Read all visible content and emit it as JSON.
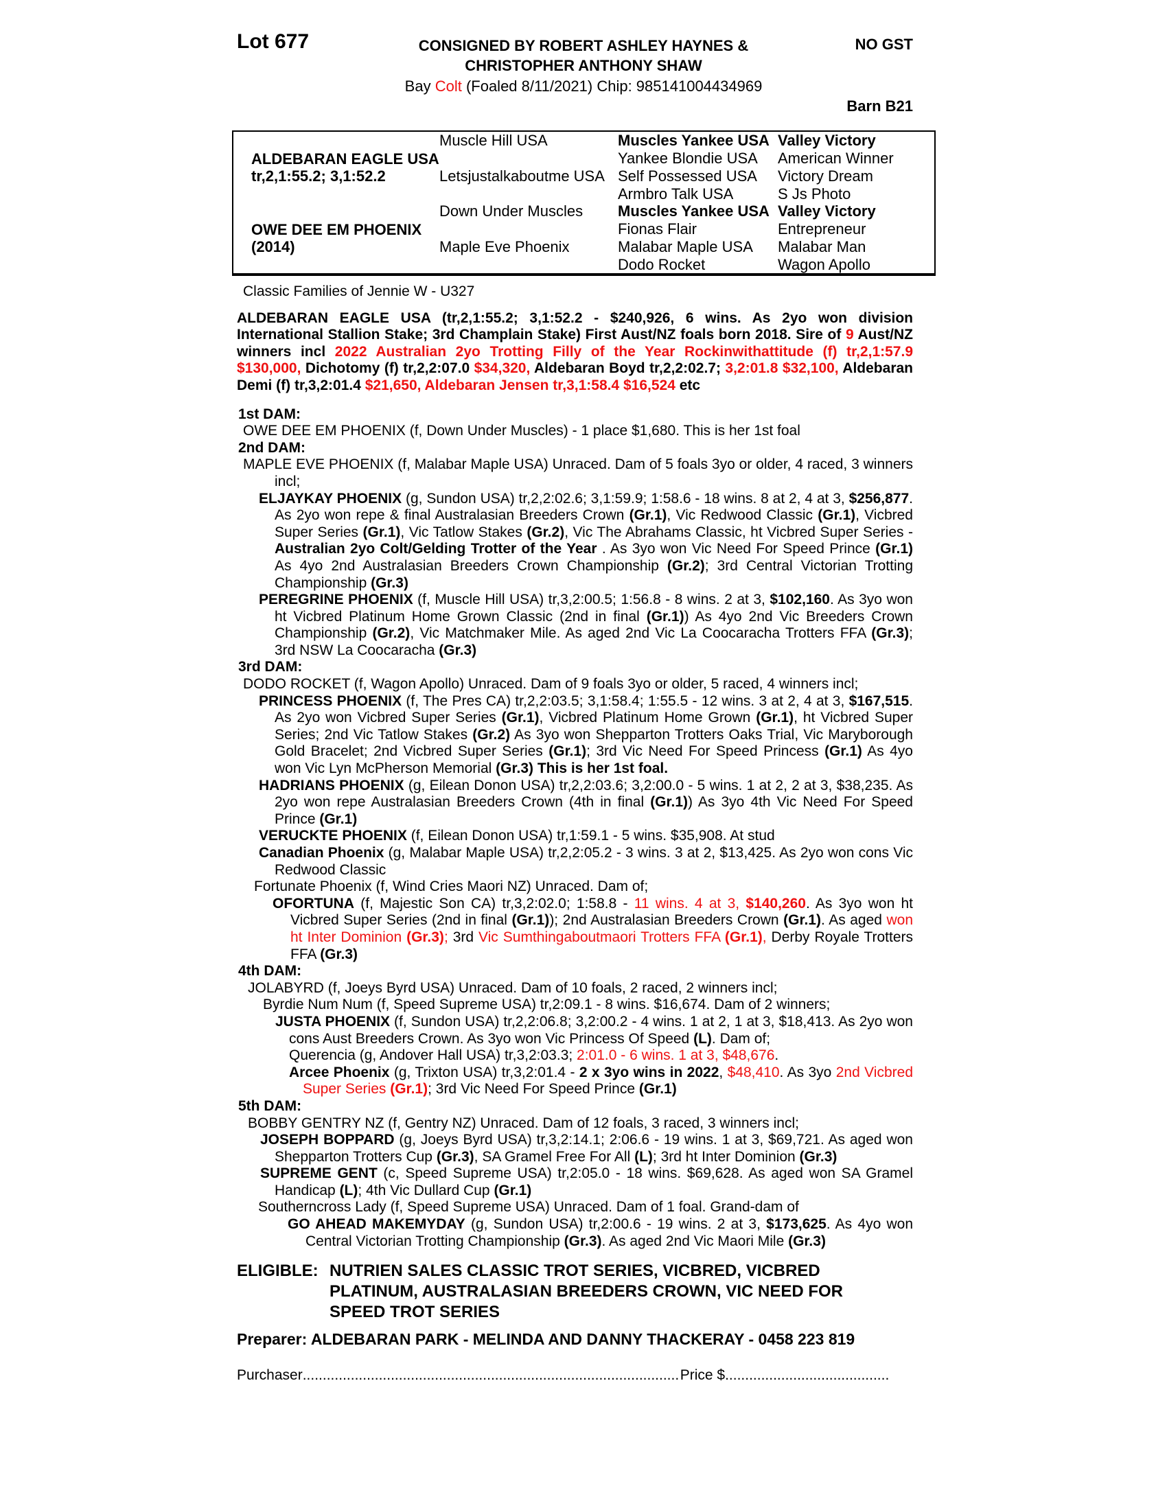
{
  "colors": {
    "accent_red": "#ee1111",
    "text": "#000000",
    "page_bg": "#ffffff"
  },
  "header": {
    "lot": "Lot 677",
    "consigned_line1": "CONSIGNED BY ROBERT ASHLEY HAYNES &",
    "consigned_line2": "CHRISTOPHER ANTHONY SHAW",
    "no_gst": "NO GST",
    "barn": "Barn B21",
    "foal_segments": [
      {
        "t": "Bay "
      },
      {
        "t": "Colt",
        "r": true
      },
      {
        "t": " (Foaled 8/11/2021) Chip: 985141004434969"
      }
    ]
  },
  "pedigree_table": {
    "main": [
      {
        "name": "ALDEBARAN EAGLE USA",
        "record": "tr,2,1:55.2; 3,1:52.2"
      },
      {
        "name": "OWE DEE EM PHOENIX",
        "record": "(2014)"
      }
    ],
    "gen2": [
      "Muscle Hill USA",
      "Letsjustalkaboutme USA",
      "Down Under Muscles",
      "Maple Eve Phoenix"
    ],
    "rows": [
      {
        "c3": "Muscles Yankee USA",
        "c4": "Valley Victory"
      },
      {
        "c3": "Yankee Blondie USA",
        "c4": "American Winner"
      },
      {
        "c3": "Self Possessed USA",
        "c4": "Victory Dream"
      },
      {
        "c3": "Armbro Talk USA",
        "c4": "S Js Photo"
      },
      {
        "c3": "Muscles Yankee USA",
        "c4": "Valley Victory"
      },
      {
        "c3": "Fionas Flair",
        "c4": "Entrepreneur"
      },
      {
        "c3": "Malabar Maple USA",
        "c4": "Malabar Man"
      },
      {
        "c3": "Dodo Rocket",
        "c4": "Wagon Apollo"
      }
    ]
  },
  "family_line": "Classic Families of Jennie W - U327",
  "paragraphs": {
    "sire": [
      {
        "t": "ALDEBARAN EAGLE USA (tr,2,1:55.2; 3,1:52.2 - $240,926, 6 wins. As 2yo won division International Stallion Stake; 3rd Champlain Stake) First Aust/NZ foals born 2018. Sire of ",
        "b": true
      },
      {
        "t": "9",
        "b": true,
        "r": true
      },
      {
        "t": " Aust/NZ winners incl ",
        "b": true
      },
      {
        "t": "2022 Australian 2yo Trotting Filly of the Year Rockinwithattitude (f) tr,2,1:57.9 $130,000,",
        "b": true,
        "r": true
      },
      {
        "t": " Dichotomy (f) tr,2,2:07.0 ",
        "b": true
      },
      {
        "t": "$34,320,",
        "b": true,
        "r": true
      },
      {
        "t": " Aldebaran Boyd tr,2,2:02.7; ",
        "b": true
      },
      {
        "t": "3,2:01.8 $32,100,",
        "b": true,
        "r": true
      },
      {
        "t": " Aldebaran Demi (f) tr,3,2:01.4 ",
        "b": true
      },
      {
        "t": "$21,650, Aldebaran Jensen tr,3,1:58.4 $16,524",
        "b": true,
        "r": true
      },
      {
        "t": " etc",
        "b": true
      }
    ],
    "dam1_heading": "1st DAM:",
    "dam1": [
      {
        "t": "OWE DEE EM PHOENIX (f, Down Under Muscles) - 1 place $1,680. This is her 1st foal"
      }
    ],
    "dam2_heading": "2nd DAM:",
    "dam2": [
      {
        "t": "MAPLE EVE PHOENIX (f, Malabar Maple USA) Unraced. Dam of 5 foals 3yo or older, 4 raced, 3 winners incl;"
      }
    ],
    "eljaykay": [
      {
        "t": "ELJAYKAY PHOENIX",
        "b": true
      },
      {
        "t": " (g, Sundon USA) tr,2,2:02.6; 3,1:59.9; 1:58.6 - 18 wins. 8 at 2, 4 at 3, "
      },
      {
        "t": "$256,877",
        "b": true
      },
      {
        "t": ". As 2yo won repe & final Australasian Breeders Crown "
      },
      {
        "t": "(Gr.1)",
        "b": true
      },
      {
        "t": ", Vic Redwood Classic "
      },
      {
        "t": "(Gr.1)",
        "b": true
      },
      {
        "t": ", Vicbred Super Series "
      },
      {
        "t": "(Gr.1)",
        "b": true
      },
      {
        "t": ", Vic Tatlow Stakes "
      },
      {
        "t": "(Gr.2)",
        "b": true
      },
      {
        "t": ", Vic The Abrahams Classic, ht Vicbred Super Series - "
      },
      {
        "t": "Australian 2yo Colt/Gelding Trotter of the Year",
        "b": true
      },
      {
        "t": " . As 3yo won Vic Need For Speed Prince "
      },
      {
        "t": "(Gr.1)",
        "b": true
      },
      {
        "t": " As 4yo 2nd Australasian Breeders Crown Championship "
      },
      {
        "t": "(Gr.2)",
        "b": true
      },
      {
        "t": "; 3rd Central Victorian Trotting Championship "
      },
      {
        "t": "(Gr.3)",
        "b": true
      }
    ],
    "peregrine": [
      {
        "t": "PEREGRINE PHOENIX",
        "b": true
      },
      {
        "t": " (f, Muscle Hill USA) tr,3,2:00.5; 1:56.8 - 8 wins. 2 at 3, "
      },
      {
        "t": "$102,160",
        "b": true
      },
      {
        "t": ". As 3yo won ht Vicbred Platinum Home Grown Classic (2nd in final "
      },
      {
        "t": "(Gr.1)",
        "b": true
      },
      {
        "t": ") As 4yo 2nd Vic Breeders Crown Championship "
      },
      {
        "t": "(Gr.2)",
        "b": true
      },
      {
        "t": ", Vic Matchmaker Mile. As aged 2nd Vic La Coocaracha Trotters FFA "
      },
      {
        "t": "(Gr.3)",
        "b": true
      },
      {
        "t": "; 3rd NSW La Coocaracha "
      },
      {
        "t": "(Gr.3)",
        "b": true
      }
    ],
    "dam3_heading": "3rd DAM:",
    "dam3": [
      {
        "t": "DODO ROCKET (f, Wagon Apollo) Unraced. Dam of 9 foals 3yo or older, 5 raced, 4 winners incl;"
      }
    ],
    "princess": [
      {
        "t": "PRINCESS PHOENIX",
        "b": true
      },
      {
        "t": " (f, The Pres CA) tr,2,2:03.5; 3,1:58.4; 1:55.5 - 12 wins. 3 at 2, 4 at 3, "
      },
      {
        "t": "$167,515",
        "b": true
      },
      {
        "t": ". As 2yo won Vicbred Super Series "
      },
      {
        "t": "(Gr.1)",
        "b": true
      },
      {
        "t": ", Vicbred Platinum Home Grown "
      },
      {
        "t": "(Gr.1)",
        "b": true
      },
      {
        "t": ", ht Vicbred Super Series; 2nd Vic Tatlow Stakes "
      },
      {
        "t": "(Gr.2)",
        "b": true
      },
      {
        "t": " As 3yo won Shepparton Trotters Oaks Trial, Vic Maryborough Gold Bracelet; 2nd Vicbred Super Series "
      },
      {
        "t": "(Gr.1)",
        "b": true
      },
      {
        "t": "; 3rd Vic Need For Speed Princess "
      },
      {
        "t": "(Gr.1)",
        "b": true
      },
      {
        "t": " As 4yo won Vic Lyn McPherson Memorial "
      },
      {
        "t": "(Gr.3)",
        "b": true
      },
      {
        "t": " This is her 1st foal.",
        "b": true
      }
    ],
    "hadrians": [
      {
        "t": "HADRIANS PHOENIX",
        "b": true
      },
      {
        "t": " (g, Eilean Donon USA) tr,2,2:03.6; 3,2:00.0 - 5 wins. 1 at 2, 2 at 3, $38,235. As 2yo won repe Australasian Breeders Crown (4th in final "
      },
      {
        "t": "(Gr.1)",
        "b": true
      },
      {
        "t": ") As 3yo 4th Vic Need For Speed Prince "
      },
      {
        "t": "(Gr.1)",
        "b": true
      }
    ],
    "veruckte": [
      {
        "t": "VERUCKTE PHOENIX",
        "b": true
      },
      {
        "t": " (f, Eilean Donon USA) tr,1:59.1 - 5 wins. $35,908. At stud"
      }
    ],
    "canadian": [
      {
        "t": "Canadian Phoenix",
        "b": true
      },
      {
        "t": " (g, Malabar Maple USA) tr,2,2:05.2 - 3 wins. 3 at 2, $13,425. As 2yo won cons Vic Redwood Classic"
      }
    ],
    "fortunate": [
      {
        "t": "Fortunate Phoenix (f, Wind Cries Maori NZ) Unraced. Dam of;"
      }
    ],
    "ofortuna": [
      {
        "t": "OFORTUNA",
        "b": true
      },
      {
        "t": " (f, Majestic Son CA) tr,3,2:02.0; 1:58.8 - "
      },
      {
        "t": "11 wins. 4 at 3, ",
        "r": true
      },
      {
        "t": "$140,260",
        "r": true,
        "b": true
      },
      {
        "t": ". As 3yo won ht Vicbred Super Series (2nd in final "
      },
      {
        "t": "(Gr.1)",
        "b": true
      },
      {
        "t": "); 2nd Australasian Breeders Crown "
      },
      {
        "t": "(Gr.1)",
        "b": true
      },
      {
        "t": ". As aged "
      },
      {
        "t": "won ht Inter Dominion ",
        "r": true
      },
      {
        "t": "(Gr.3)",
        "r": true,
        "b": true
      },
      {
        "t": "; ",
        "r": true
      },
      {
        "t": "3rd "
      },
      {
        "t": "Vic Sumthingaboutmaori Trotters FFA ",
        "r": true
      },
      {
        "t": "(Gr.1)",
        "r": true,
        "b": true
      },
      {
        "t": ",",
        "r": true
      },
      {
        "t": " Derby Royale Trotters FFA "
      },
      {
        "t": "(Gr.3)",
        "b": true
      }
    ],
    "dam4_heading": "4th DAM:",
    "dam4": [
      {
        "t": "JOLABYRD (f, Joeys Byrd USA) Unraced. Dam of 10 foals, 2 raced, 2 winners incl;"
      }
    ],
    "byrdie": [
      {
        "t": "Byrdie Num Num (f, Speed Supreme USA) tr,2:09.1 - 8 wins. $16,674. Dam of 2 winners;"
      }
    ],
    "justa": [
      {
        "t": "JUSTA PHOENIX",
        "b": true
      },
      {
        "t": " (f, Sundon USA) tr,2,2:06.8; 3,2:00.2 - 4 wins. 1 at 2, 1 at 3, $18,413. As 2yo won cons Aust Breeders Crown. As 3yo won Vic Princess Of Speed "
      },
      {
        "t": "(L)",
        "b": true
      },
      {
        "t": ". Dam of;"
      }
    ],
    "querencia": [
      {
        "t": "Querencia (g, Andover Hall USA) tr,3,2:03.3; "
      },
      {
        "t": "2:01.0 - 6 wins. 1 at 3, $48,676",
        "r": true
      },
      {
        "t": "."
      }
    ],
    "arcee": [
      {
        "t": "Arcee Phoenix",
        "b": true
      },
      {
        "t": " (g, Trixton USA) tr,3,2:01.4 - "
      },
      {
        "t": "2 x 3yo wins in 2022",
        "b": true
      },
      {
        "t": ", "
      },
      {
        "t": "$48,410",
        "r": true
      },
      {
        "t": ". As 3yo "
      },
      {
        "t": "2nd Vicbred Super Series ",
        "r": true
      },
      {
        "t": "(Gr.1)",
        "r": true,
        "b": true
      },
      {
        "t": "; 3rd Vic Need For Speed Prince "
      },
      {
        "t": "(Gr.1)",
        "b": true
      }
    ],
    "dam5_heading": "5th DAM:",
    "dam5": [
      {
        "t": "BOBBY GENTRY NZ (f, Gentry NZ) Unraced. Dam of 12 foals, 3 raced, 3 winners incl;"
      }
    ],
    "joseph": [
      {
        "t": "JOSEPH BOPPARD",
        "b": true
      },
      {
        "t": " (g, Joeys Byrd USA) tr,3,2:14.1; 2:06.6 - 19 wins. 1 at 3, $69,721. As aged won Shepparton Trotters Cup "
      },
      {
        "t": "(Gr.3)",
        "b": true
      },
      {
        "t": ", SA Gramel Free For All "
      },
      {
        "t": "(L)",
        "b": true
      },
      {
        "t": "; 3rd ht Inter Dominion "
      },
      {
        "t": "(Gr.3)",
        "b": true
      }
    ],
    "supreme": [
      {
        "t": "SUPREME GENT",
        "b": true
      },
      {
        "t": " (c, Speed Supreme USA) tr,2:05.0 - 18 wins. $69,628. As aged won SA Gramel Handicap "
      },
      {
        "t": "(L)",
        "b": true
      },
      {
        "t": "; 4th Vic Dullard Cup "
      },
      {
        "t": "(Gr.1)",
        "b": true
      }
    ],
    "southerncross": [
      {
        "t": "Southerncross Lady (f, Speed Supreme USA) Unraced. Dam of 1 foal. Grand-dam of"
      }
    ],
    "goahead": [
      {
        "t": "GO AHEAD MAKEMYDAY",
        "b": true
      },
      {
        "t": " (g, Sundon USA) tr,2:00.6 - 19 wins. 2 at 3, "
      },
      {
        "t": "$173,625",
        "b": true
      },
      {
        "t": ". As 4yo won Central Victorian Trotting Championship "
      },
      {
        "t": "(Gr.3)",
        "b": true
      },
      {
        "t": ". As aged 2nd Vic Maori Mile "
      },
      {
        "t": "(Gr.3)",
        "b": true
      }
    ]
  },
  "footer": {
    "eligible_label": "ELIGIBLE:",
    "eligible_line1": "NUTRIEN SALES CLASSIC TROT SERIES, VICBRED, VICBRED",
    "eligible_line2": "PLATINUM, AUSTRALASIAN BREEDERS CROWN, VIC NEED FOR",
    "eligible_line3": "SPEED TROT SERIES",
    "preparer": "Preparer: ALDEBARAN PARK - MELINDA AND DANNY THACKERAY - 0458 223 819",
    "purchaser_label": "Purchaser",
    "price_label": "Price $",
    "leader_dots": "...................................................................................................................................................."
  }
}
